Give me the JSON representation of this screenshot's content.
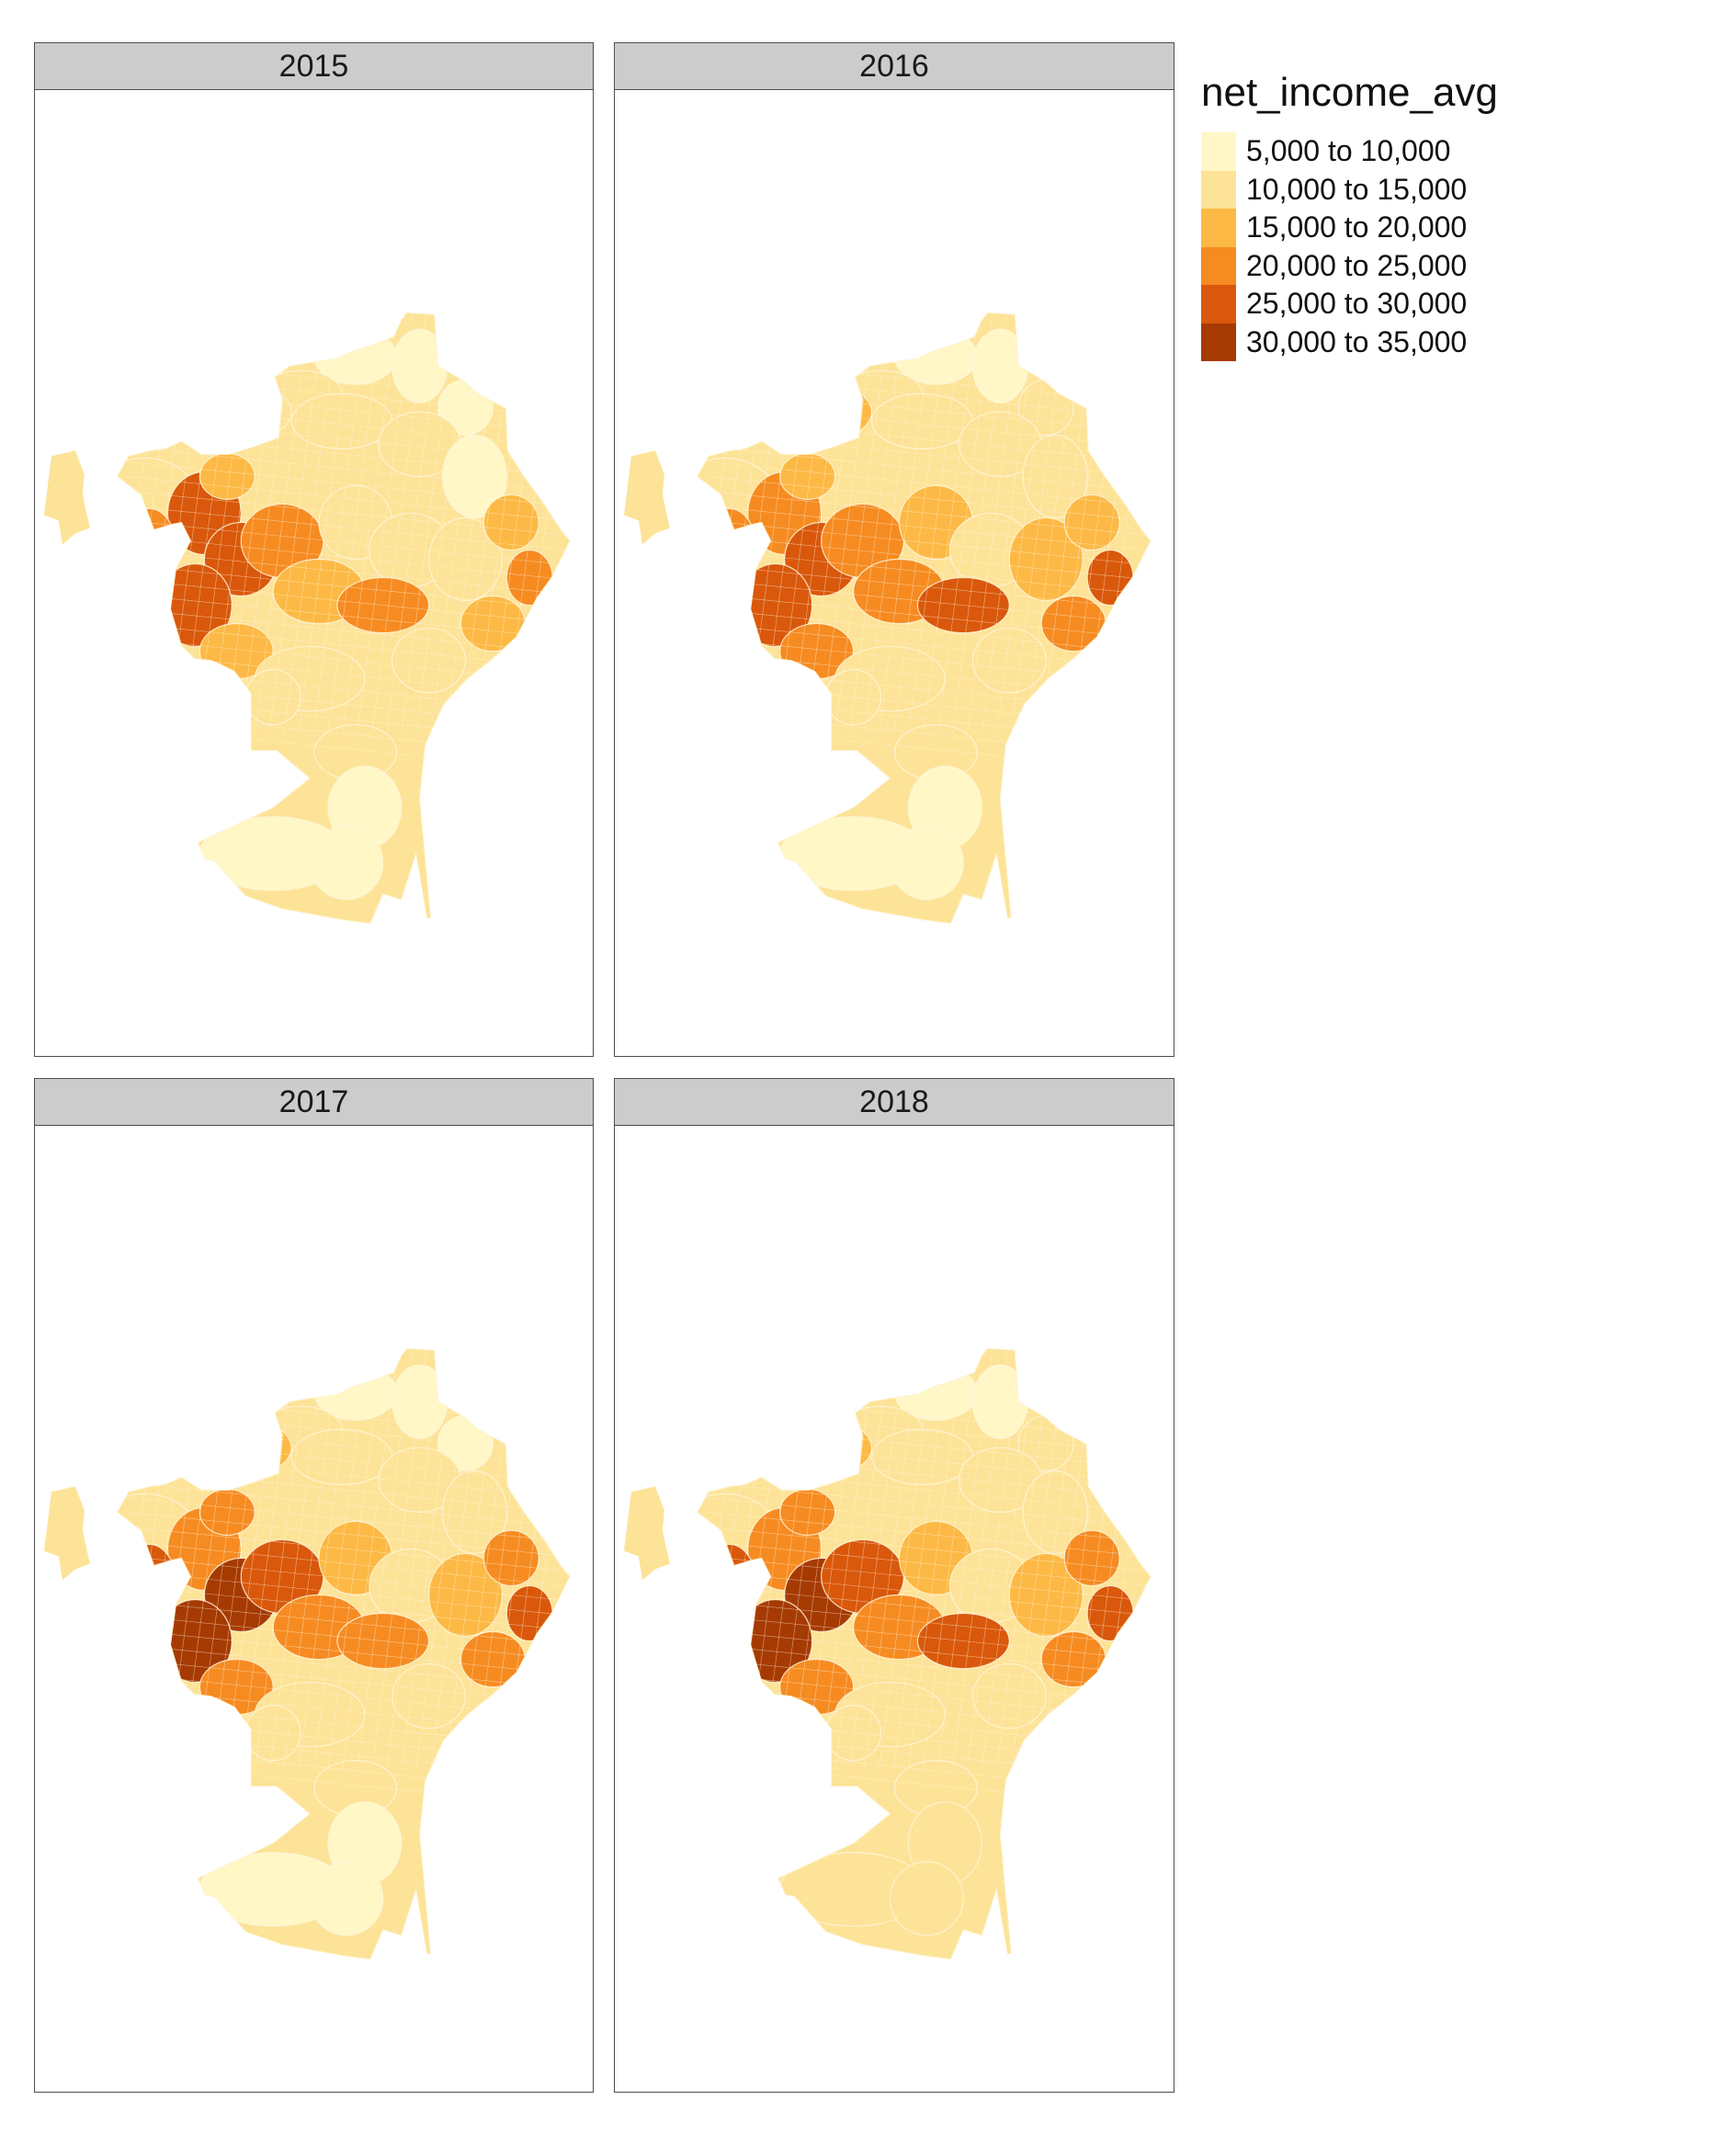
{
  "legend": {
    "title": "net_income_avg",
    "classes": [
      {
        "label": "5,000 to 10,000",
        "color": "#fff7c6"
      },
      {
        "label": "10,000 to 15,000",
        "color": "#fde397"
      },
      {
        "label": "15,000 to 20,000",
        "color": "#fdb945"
      },
      {
        "label": "20,000 to 25,000",
        "color": "#f68b22"
      },
      {
        "label": "25,000 to 30,000",
        "color": "#d9580c"
      },
      {
        "label": "30,000 to 35,000",
        "color": "#a63a03"
      }
    ]
  },
  "panels": [
    {
      "year": "2015"
    },
    {
      "year": "2016"
    },
    {
      "year": "2017"
    },
    {
      "year": "2018"
    }
  ]
}
